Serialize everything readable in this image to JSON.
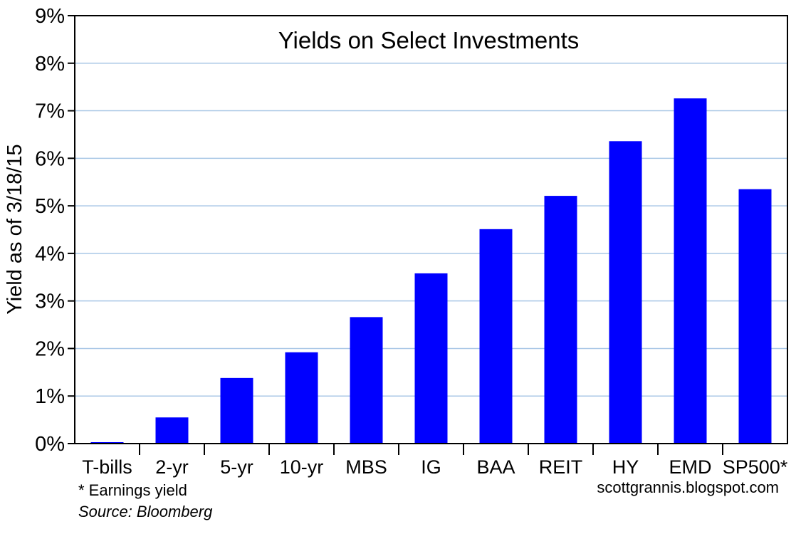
{
  "chart_data": {
    "type": "bar",
    "title": "Yields on Select Investments",
    "ylabel": "Yield as of 3/18/15",
    "xlabel": "",
    "categories": [
      "T-bills",
      "2-yr",
      "5-yr",
      "10-yr",
      "MBS",
      "IG",
      "BAA",
      "REIT",
      "HY",
      "EMD",
      "SP500*"
    ],
    "values": [
      0.03,
      0.55,
      1.38,
      1.92,
      2.66,
      3.58,
      4.51,
      5.21,
      6.36,
      7.26,
      5.35
    ],
    "ylim": [
      0,
      9
    ],
    "yticks": [
      0,
      1,
      2,
      3,
      4,
      5,
      6,
      7,
      8,
      9
    ],
    "ytick_labels": [
      "0%",
      "1%",
      "2%",
      "3%",
      "4%",
      "5%",
      "6%",
      "7%",
      "8%",
      "9%"
    ],
    "grid": true,
    "bar_color": "#0000ff",
    "grid_color": "#a9c7e6",
    "footnote": "* Earnings yield",
    "source": "Source: Bloomberg",
    "credit": "scottgrannis.blogspot.com"
  }
}
